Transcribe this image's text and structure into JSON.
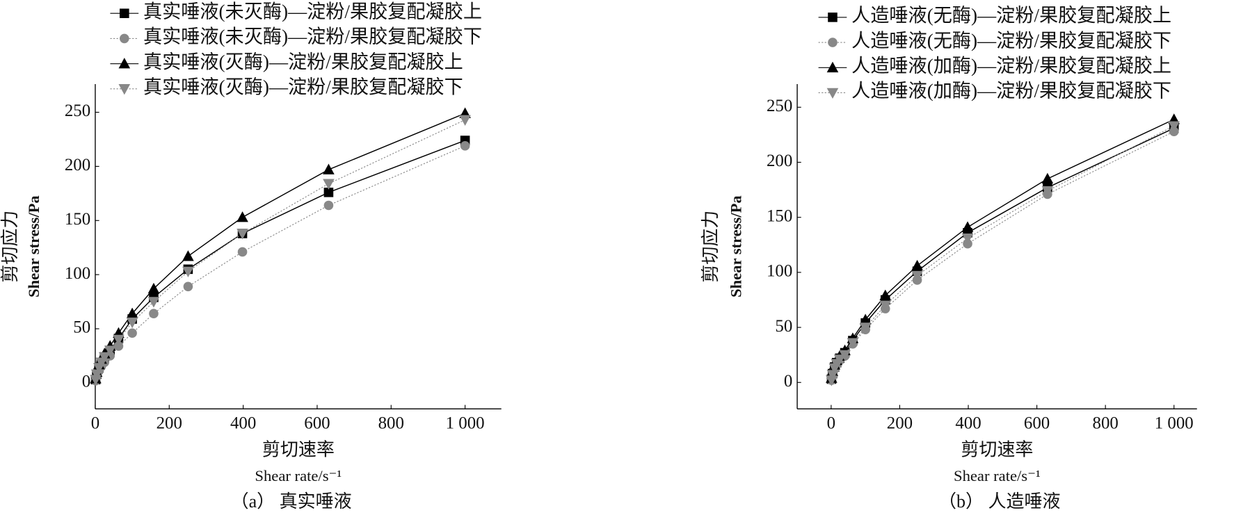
{
  "chart_data": [
    {
      "type": "line",
      "caption": "（a） 真实唾液",
      "xlabel": "剪切速率",
      "xlabel_en": "Shear rate/s⁻¹",
      "ylabel": "剪切应力",
      "ylabel_en": "Shear stress/Pa",
      "x": [
        1,
        4,
        10,
        16,
        25,
        40,
        63,
        100,
        158,
        251,
        398,
        631,
        1000
      ],
      "xlim": [
        0,
        1098
      ],
      "ylim": [
        -24,
        276
      ],
      "xticks": [
        0,
        200,
        400,
        600,
        800,
        {
          "value": 1000,
          "label": "1 000"
        }
      ],
      "yticks": [
        0,
        50,
        100,
        150,
        200,
        250
      ],
      "series": [
        {
          "name": "真实唾液(未灭酶)—淀粉/果胶复配凝胶上",
          "color": "#000000",
          "marker": "square",
          "line": "solid",
          "values": [
            3,
            8,
            14,
            19,
            24,
            30,
            41,
            59,
            79,
            105,
            138,
            176,
            224
          ]
        },
        {
          "name": "真实唾液(未灭酶)—淀粉/果胶复配凝胶下",
          "color": "#888888",
          "marker": "circle",
          "line": "dotted",
          "values": [
            2,
            6,
            11,
            15,
            19,
            25,
            34,
            46,
            64,
            89,
            121,
            164,
            219
          ]
        },
        {
          "name": "真实唾液(灭酶)—淀粉/果胶复配凝胶上",
          "color": "#000000",
          "marker": "triangle-up",
          "line": "solid",
          "values": [
            4,
            10,
            17,
            22,
            27,
            34,
            46,
            64,
            87,
            117,
            153,
            197,
            249
          ]
        },
        {
          "name": "真实唾液(灭酶)—淀粉/果胶复配凝胶下",
          "color": "#888888",
          "marker": "triangle-down",
          "line": "dotted",
          "values": [
            3,
            8,
            14,
            19,
            24,
            30,
            40,
            56,
            75,
            103,
            138,
            184,
            243
          ]
        }
      ]
    },
    {
      "type": "line",
      "caption": "（b） 人造唾液",
      "xlabel": "剪切速率",
      "xlabel_en": "Shear rate/s⁻¹",
      "ylabel": "剪切应力",
      "ylabel_en": "Shear stress/Pa",
      "x": [
        1,
        4,
        10,
        16,
        25,
        40,
        63,
        100,
        158,
        251,
        398,
        631,
        1000
      ],
      "xlim": [
        -99,
        1067
      ],
      "ylim": [
        -24,
        271
      ],
      "xticks": [
        0,
        200,
        400,
        600,
        800,
        {
          "value": 1000,
          "label": "1 000"
        }
      ],
      "yticks": [
        0,
        50,
        100,
        150,
        200,
        250
      ],
      "series": [
        {
          "name": "人造唾液(无酶)—淀粉/果胶复配凝胶上",
          "color": "#000000",
          "marker": "square",
          "line": "solid",
          "values": [
            3,
            8,
            14,
            18,
            22,
            27,
            38,
            54,
            75,
            101,
            136,
            177,
            231
          ]
        },
        {
          "name": "人造唾液(无酶)—淀粉/果胶复配凝胶下",
          "color": "#888888",
          "marker": "circle",
          "line": "dotted",
          "values": [
            2,
            6,
            12,
            16,
            20,
            24,
            35,
            48,
            67,
            93,
            126,
            171,
            228
          ]
        },
        {
          "name": "人造唾液(加酶)—淀粉/果胶复配凝胶上",
          "color": "#000000",
          "marker": "triangle-up",
          "line": "solid",
          "values": [
            4,
            10,
            16,
            20,
            24,
            29,
            40,
            57,
            79,
            106,
            141,
            185,
            239
          ]
        },
        {
          "name": "人造唾液(加酶)—淀粉/果胶复配凝胶下",
          "color": "#888888",
          "marker": "triangle-down",
          "line": "dotted",
          "values": [
            2,
            7,
            13,
            17,
            21,
            25,
            36,
            50,
            70,
            97,
            131,
            174,
            233
          ]
        }
      ]
    }
  ]
}
